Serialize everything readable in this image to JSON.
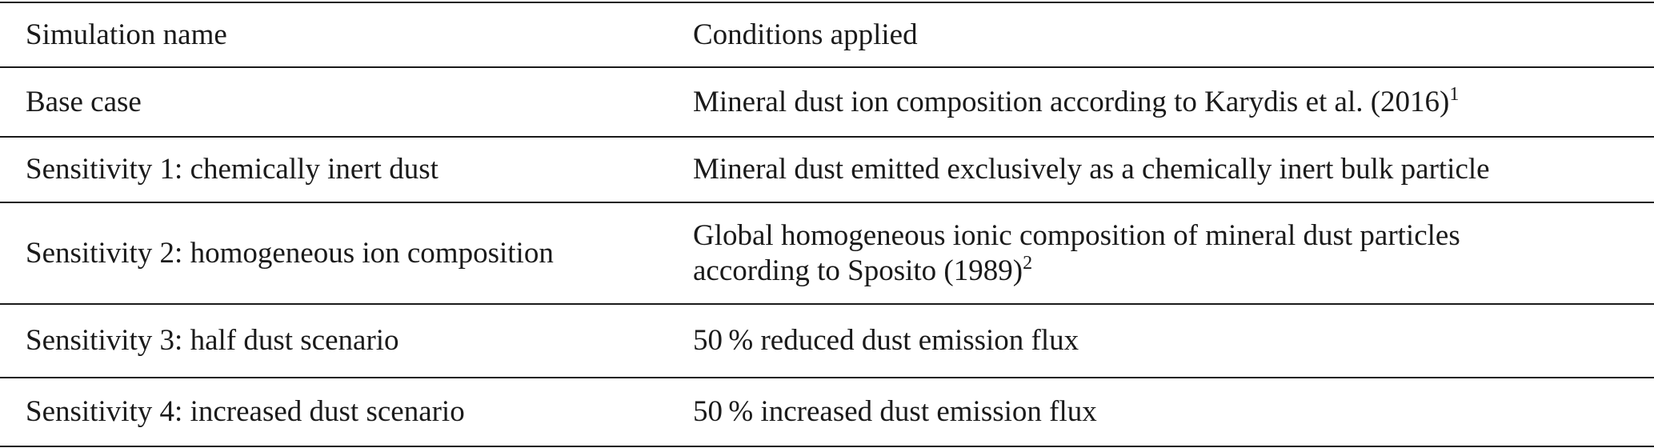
{
  "table": {
    "header": [
      "Simulation name",
      "Conditions applied"
    ],
    "rows": [
      [
        {
          "text": "Base case"
        },
        {
          "text": "Mineral dust ion composition according to Karydis et al. (2016)",
          "sup": "1"
        }
      ],
      [
        {
          "text": "Sensitivity 1: chemically inert dust"
        },
        {
          "text": "Mineral dust emitted exclusively as a chemically inert bulk particle"
        }
      ],
      [
        {
          "text": "Sensitivity 2: homogeneous ion composition"
        },
        {
          "lines": [
            "Global homogeneous ionic composition of mineral dust particles",
            "according to Sposito (1989)"
          ],
          "sup": "2"
        }
      ],
      [
        {
          "text": "Sensitivity 3: half dust scenario"
        },
        {
          "text": "50 % reduced dust emission flux"
        }
      ],
      [
        {
          "text": "Sensitivity 4: increased dust scenario"
        },
        {
          "text": "50 % increased dust emission flux"
        }
      ]
    ]
  }
}
